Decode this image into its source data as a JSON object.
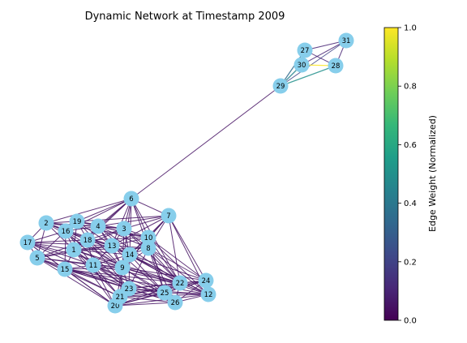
{
  "title": "Dynamic Network at Timestamp 2009",
  "colorbar": {
    "label": "Edge Weight (Normalized)",
    "min": 0.0,
    "max": 1.0,
    "ticks": [
      {
        "value": 0.0,
        "label": "0.0"
      },
      {
        "value": 0.2,
        "label": "0.2"
      },
      {
        "value": 0.4,
        "label": "0.4"
      },
      {
        "value": 0.6,
        "label": "0.6"
      },
      {
        "value": 0.8,
        "label": "0.8"
      },
      {
        "value": 1.0,
        "label": "1.0"
      }
    ],
    "colormap": "viridis",
    "stops": [
      "#440154",
      "#482878",
      "#3e4989",
      "#31688e",
      "#26828e",
      "#1f9e89",
      "#35b779",
      "#6ece58",
      "#b5de2b",
      "#fde725"
    ]
  },
  "node_style": {
    "fill": "#87ceeb",
    "label_color": "#000000"
  },
  "chart_data": {
    "type": "network",
    "nodes": [
      "1",
      "2",
      "3",
      "4",
      "5",
      "6",
      "7",
      "8",
      "9",
      "10",
      "11",
      "12",
      "13",
      "14",
      "15",
      "16",
      "17",
      "18",
      "19",
      "20",
      "21",
      "22",
      "23",
      "24",
      "25",
      "26",
      "27",
      "28",
      "29",
      "30",
      "31"
    ],
    "edges_explicit": [
      {
        "source": "6",
        "target": "29",
        "weight": 0.05
      },
      {
        "source": "29",
        "target": "30",
        "weight": 0.45
      },
      {
        "source": "29",
        "target": "27",
        "weight": 0.35
      },
      {
        "source": "29",
        "target": "31",
        "weight": 0.2
      },
      {
        "source": "29",
        "target": "28",
        "weight": 0.5
      },
      {
        "source": "30",
        "target": "28",
        "weight": 1.0
      },
      {
        "source": "30",
        "target": "31",
        "weight": 0.1
      },
      {
        "source": "30",
        "target": "27",
        "weight": 0.1
      },
      {
        "source": "27",
        "target": "31",
        "weight": 0.1
      },
      {
        "source": "27",
        "target": "28",
        "weight": 0.1
      },
      {
        "source": "31",
        "target": "28",
        "weight": 0.1
      }
    ],
    "cluster_1_nodes": [
      "1",
      "2",
      "3",
      "4",
      "5",
      "6",
      "7",
      "8",
      "9",
      "10",
      "11",
      "12",
      "13",
      "14",
      "15",
      "16",
      "17",
      "18",
      "19",
      "20",
      "21",
      "22",
      "23",
      "24",
      "25",
      "26"
    ],
    "cluster_1_edge_weight": 0.05
  }
}
